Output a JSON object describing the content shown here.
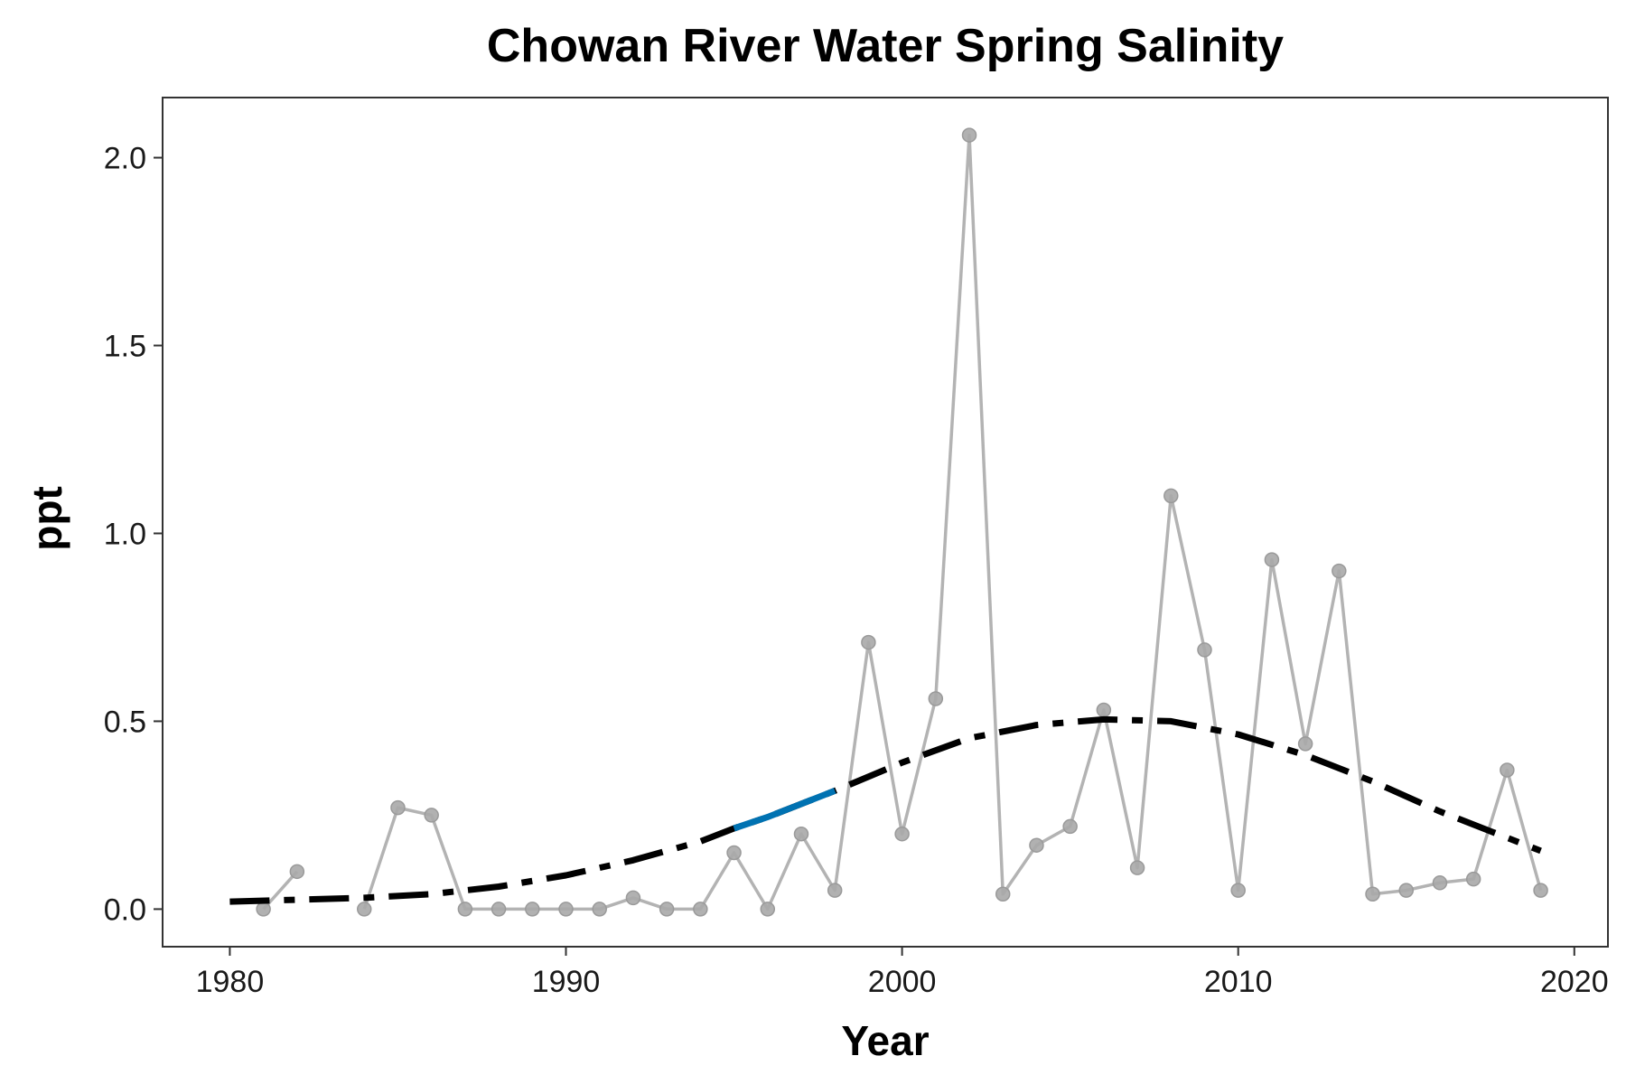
{
  "chart_data": {
    "type": "line",
    "title": "Chowan River Water Spring Salinity",
    "xlabel": "Year",
    "ylabel": "ppt",
    "xlim": [
      1978,
      2021
    ],
    "ylim": [
      -0.1,
      2.16
    ],
    "x_ticks": [
      1980,
      1990,
      2000,
      2010,
      2020
    ],
    "y_ticks": [
      0.0,
      0.5,
      1.0,
      1.5,
      2.0
    ],
    "y_tick_labels": [
      "0.0",
      "0.5",
      "1.0",
      "1.5",
      "2.0"
    ],
    "grid": false,
    "legend": "none",
    "series": [
      {
        "type": "line-points",
        "color": "#b3b3b3",
        "segments": [
          {
            "x": [
              1981,
              1982
            ],
            "y": [
              0.0,
              0.1
            ]
          },
          {
            "x": [
              1984,
              1985,
              1986,
              1987,
              1988,
              1989,
              1990,
              1991,
              1992,
              1993,
              1994,
              1995,
              1996,
              1997,
              1998,
              1999,
              2000,
              2001,
              2002,
              2003,
              2004,
              2005,
              2006,
              2007,
              2008,
              2009,
              2010,
              2011,
              2012,
              2013,
              2014,
              2015,
              2016,
              2017,
              2018,
              2019
            ],
            "y": [
              0.0,
              0.27,
              0.25,
              0.0,
              0.0,
              0.0,
              0.0,
              0.0,
              0.03,
              0.0,
              0.0,
              0.15,
              0.0,
              0.2,
              0.05,
              0.71,
              0.2,
              0.56,
              2.06,
              0.04,
              0.17,
              0.22,
              0.53,
              0.11,
              1.1,
              0.69,
              0.05,
              0.93,
              0.44,
              0.9,
              0.04,
              0.05,
              0.07,
              0.08,
              0.37,
              0.05
            ]
          }
        ]
      },
      {
        "type": "trend",
        "color": "#000000",
        "highlight_color": "#0072b2",
        "highlight_range": [
          1995,
          1998
        ],
        "x": [
          1980,
          1982,
          1984,
          1986,
          1988,
          1990,
          1992,
          1994,
          1995,
          1996,
          1998,
          2000,
          2002,
          2004,
          2006,
          2008,
          2010,
          2012,
          2014,
          2016,
          2018,
          2019
        ],
        "y": [
          0.02,
          0.025,
          0.03,
          0.04,
          0.06,
          0.09,
          0.13,
          0.18,
          0.215,
          0.245,
          0.315,
          0.39,
          0.455,
          0.49,
          0.505,
          0.5,
          0.465,
          0.41,
          0.34,
          0.26,
          0.19,
          0.155
        ]
      }
    ]
  }
}
